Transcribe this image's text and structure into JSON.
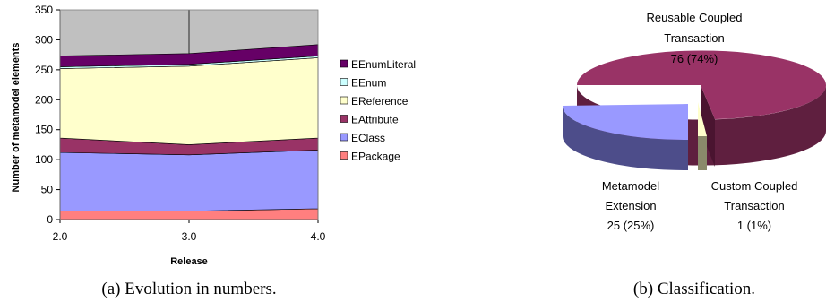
{
  "colors": {
    "EPackage": "#ff7f7f",
    "EClass": "#9999ff",
    "EAttribute": "#993366",
    "EReference": "#ffffcc",
    "EEnum": "#ccffff",
    "EEnumLiteral": "#660066",
    "plot_background": "#c0c0c0",
    "pie_reusable": "#993366",
    "pie_metamodel": "#9999ff",
    "pie_custom": "#ffffcc"
  },
  "chart_data": [
    {
      "type": "area",
      "stacked": true,
      "xlabel": "Release",
      "ylabel": "Number of metamodel elements",
      "categories": [
        "2.0",
        "3.0",
        "4.0"
      ],
      "ylim": [
        0,
        350
      ],
      "yticks": [
        "0",
        "50",
        "100",
        "150",
        "200",
        "250",
        "300",
        "350"
      ],
      "grid": "vertical line at 3.0",
      "legend_position": "right",
      "series": [
        {
          "name": "EPackage",
          "values": [
            14,
            14,
            18
          ]
        },
        {
          "name": "EClass",
          "values": [
            98,
            94,
            98
          ]
        },
        {
          "name": "EAttribute",
          "values": [
            24,
            17,
            20
          ]
        },
        {
          "name": "EReference",
          "values": [
            116,
            131,
            134
          ]
        },
        {
          "name": "EEnum",
          "values": [
            3,
            3,
            3
          ]
        },
        {
          "name": "EEnumLiteral",
          "values": [
            18,
            18,
            19
          ]
        }
      ],
      "legend_order": [
        "EEnumLiteral",
        "EEnum",
        "EReference",
        "EAttribute",
        "EClass",
        "EPackage"
      ],
      "caption": "(a) Evolution in numbers."
    },
    {
      "type": "pie",
      "style": "3d-exploded",
      "slices": [
        {
          "name": "Reusable Coupled Transaction",
          "value": 76,
          "percent": "74%",
          "label_lines": [
            "Reusable Coupled",
            "Transaction",
            "76 (74%)"
          ]
        },
        {
          "name": "Metamodel Extension",
          "value": 25,
          "percent": "25%",
          "label_lines": [
            "Metamodel",
            "Extension",
            "25 (25%)"
          ]
        },
        {
          "name": "Custom Coupled Transaction",
          "value": 1,
          "percent": "1%",
          "label_lines": [
            "Custom Coupled",
            "Transaction",
            "1 (1%)"
          ]
        }
      ],
      "caption": "(b) Classification."
    }
  ]
}
